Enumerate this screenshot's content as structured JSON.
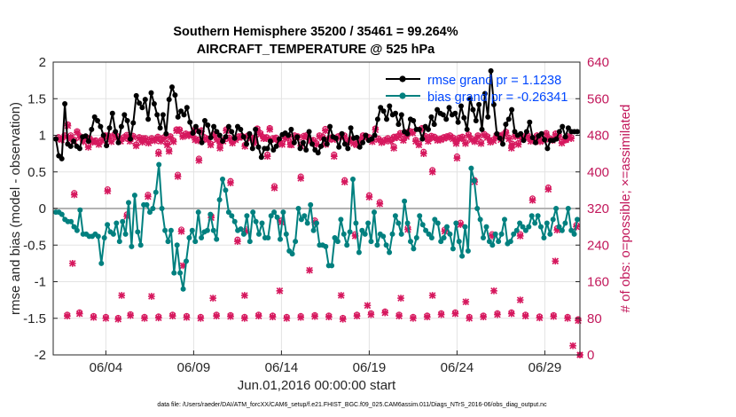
{
  "chart_data": {
    "type": "line",
    "title": "Southern Hemisphere 35200 / 35461 = 99.264%",
    "subtitle": "AIRCRAFT_TEMPERATURE @ 525 hPa",
    "xlabel": "Jun.01,2016 00:00:00 start",
    "ylabel": "rmse and bias (model - observation)",
    "ylabel_right": "# of obs: o=possible; ×=assimilated",
    "x_range_days": [
      1.0,
      31.0
    ],
    "ylim": [
      -2,
      2
    ],
    "ylim_right": [
      0,
      640
    ],
    "x_ticks": [
      "06/04",
      "06/09",
      "06/14",
      "06/19",
      "06/24",
      "06/29"
    ],
    "y_ticks": [
      "-2",
      "-1.5",
      "-1",
      "-0.5",
      "0",
      "0.5",
      "1",
      "1.5",
      "2"
    ],
    "y_ticks_right": [
      "0",
      "80",
      "160",
      "240",
      "320",
      "400",
      "480",
      "560",
      "640"
    ],
    "grid": true,
    "legend_position": "top-right",
    "footer": "data file: /Users/raeder/DAI/ATM_forcXX/CAM6_setup/f.e21.FHIST_BGC.f09_025.CAM6assim.011/Diags_NTrS_2016-06/obs_diag_output.nc",
    "colors": {
      "rmse": "#000000",
      "bias": "#00807f",
      "obs": "#d6185e",
      "zero_line": "#b3b3b3"
    },
    "series": [
      {
        "name": "rmse grand pr = 1.1238",
        "values": [
          0.95,
          0.72,
          0.68,
          1.43,
          0.88,
          0.85,
          0.92,
          0.85,
          0.82,
          0.98,
          0.99,
          0.92,
          1.08,
          1.25,
          1.2,
          1.12,
          1.0,
          0.86,
          1.1,
          1.3,
          1.05,
          0.9,
          1.12,
          1.28,
          1.2,
          0.95,
          1.17,
          1.54,
          1.44,
          1.38,
          1.49,
          1.22,
          1.58,
          1.43,
          1.28,
          1.1,
          1.28,
          1.02,
          1.49,
          1.66,
          1.55,
          1.25,
          1.33,
          1.28,
          1.38,
          1.18,
          1.03,
          1.12,
          1.05,
          0.9,
          1.2,
          1.14,
          0.97,
          1.12,
          1.05,
          1.0,
          0.92,
          0.98,
          1.12,
          1.05,
          0.96,
          1.12,
          1.08,
          0.98,
          0.88,
          1.02,
          0.82,
          1.08,
          0.84,
          0.7,
          0.82,
          0.82,
          0.92,
          0.8,
          0.85,
          0.95,
          1.01,
          1.03,
          1.0,
          1.08,
          0.9,
          0.98,
          0.82,
          0.9,
          0.8,
          1.05,
          0.88,
          0.8,
          0.76,
          0.85,
          0.95,
          0.88,
          1.12,
          0.98,
          0.96,
          0.84,
          1.02,
          0.88,
          0.82,
          1.1,
          0.96,
          0.97,
          0.84,
          0.9,
          1.0,
          0.93,
          0.95,
          1.0,
          1.22,
          1.38,
          1.33,
          1.22,
          1.4,
          1.28,
          1.3,
          1.15,
          1.28,
          1.05,
          1.02,
          1.22,
          1.2,
          1.08,
          1.08,
          0.95,
          1.12,
          1.08,
          1.25,
          1.15,
          1.35,
          1.3,
          1.28,
          1.22,
          1.38,
          1.28,
          1.3,
          1.18,
          1.4,
          1.24,
          1.08,
          1.5,
          1.35,
          1.2,
          1.42,
          1.08,
          1.57,
          1.25,
          1.88,
          1.42,
          1.02,
          0.96,
          0.88,
          1.15,
          1.22,
          1.35,
          1.05,
          1.0,
          1.02,
          0.93,
          1.05,
          1.18,
          0.97,
          0.9,
          0.99,
          1.02,
          0.94,
          0.82,
          0.93,
          0.93,
          0.95,
          1.05,
          1.12,
          0.98,
          1.1,
          1.05,
          1.05,
          1.05
        ]
      },
      {
        "name": "bias grand pr = -0.26341",
        "values": [
          -0.05,
          -0.05,
          -0.08,
          -0.15,
          -0.18,
          -0.18,
          -0.25,
          -0.3,
          -0.02,
          -0.35,
          -0.35,
          -0.38,
          -0.38,
          -0.35,
          -0.38,
          -0.75,
          -0.4,
          -0.22,
          -0.32,
          -0.35,
          -0.2,
          -0.45,
          -0.18,
          -0.35,
          0.08,
          -0.52,
          0.18,
          -0.32,
          -0.5,
          0.05,
          0.05,
          -0.05,
          0.0,
          0.22,
          0.6,
          0.0,
          -0.3,
          -0.45,
          -0.3,
          -0.88,
          -0.5,
          -0.88,
          -1.1,
          -0.72,
          -0.4,
          -0.3,
          -0.45,
          -0.05,
          -0.4,
          -0.32,
          -0.3,
          -0.08,
          -0.3,
          -0.42,
          0.12,
          0.4,
          0.25,
          -0.05,
          -0.1,
          -0.18,
          -0.3,
          -0.28,
          -0.35,
          -0.1,
          -0.45,
          -0.05,
          -0.18,
          -0.35,
          -0.2,
          -0.4,
          -0.4,
          -0.1,
          -0.05,
          -0.12,
          -0.42,
          -0.05,
          -0.35,
          -0.58,
          -0.62,
          -0.45,
          0.0,
          -0.15,
          -0.1,
          -0.2,
          0.05,
          -0.3,
          -0.2,
          -0.5,
          -0.5,
          -0.52,
          -0.78,
          -0.78,
          -0.4,
          -0.45,
          -0.15,
          -0.35,
          -0.5,
          -0.32,
          0.4,
          -0.2,
          -0.6,
          -0.3,
          -0.35,
          -0.2,
          -0.45,
          -0.05,
          -0.5,
          -0.35,
          -0.38,
          -0.5,
          -0.6,
          -0.35,
          -0.1,
          -0.2,
          -0.35,
          0.1,
          -0.2,
          -0.45,
          -0.55,
          -0.4,
          -0.1,
          -0.22,
          -0.3,
          -0.35,
          -0.4,
          -0.15,
          -0.2,
          -0.45,
          -0.4,
          -0.25,
          -0.35,
          -0.55,
          -0.2,
          -0.45,
          -0.65,
          -0.25,
          -0.58,
          0.55,
          0.38,
          0.0,
          -0.15,
          -0.4,
          -0.25,
          -0.45,
          -0.5,
          -0.35,
          -0.45,
          -0.35,
          -0.15,
          -0.48,
          -0.45,
          -0.35,
          -0.3,
          -0.2,
          -0.25,
          -0.3,
          -0.25,
          -0.1,
          -0.2,
          -0.1,
          -0.25,
          -0.4,
          -0.2,
          -0.35,
          -0.15,
          0.0,
          -0.25,
          -0.3,
          -0.2,
          0.0,
          -0.3,
          -0.35,
          -0.15
        ]
      }
    ],
    "obs_counts": {
      "possible": [
        476,
        473,
        480,
        504,
        475,
        471,
        489,
        478,
        469,
        476,
        474,
        468,
        469,
        463,
        471,
        480,
        480,
        469,
        482,
        478,
        470,
        476,
        481,
        470,
        479,
        460,
        476,
        468,
        474,
        466,
        474,
        471,
        477,
        470,
        476,
        462,
        478,
        469,
        493,
        493,
        480,
        484,
        482,
        484,
        473,
        471,
        491,
        476,
        473,
        462,
        483,
        473,
        465,
        470,
        493,
        475,
        466,
        473,
        478,
        479,
        459,
        480,
        476,
        466,
        495,
        485,
        476,
        476,
        496,
        474,
        475,
        467,
        463,
        476,
        479,
        462,
        480,
        478,
        460,
        479,
        481,
        470,
        470,
        463,
        480,
        477,
        463,
        473,
        476,
        474,
        478,
        481,
        480,
        468,
        472,
        465,
        462,
        470,
        480,
        479,
        476,
        469,
        495,
        473,
        467,
        470,
        474,
        470,
        477,
        478,
        485,
        472,
        480,
        490,
        488,
        470,
        462,
        496,
        479,
        470,
        479,
        477,
        472,
        473,
        476,
        478,
        480,
        475,
        465,
        475,
        477,
        465,
        482,
        473,
        469,
        480,
        465,
        483,
        478,
        468,
        471,
        481,
        480,
        482,
        488,
        475,
        462,
        480,
        463,
        476,
        478,
        480,
        470,
        473,
        480,
        469,
        472,
        485,
        474,
        472,
        484,
        480,
        466,
        473,
        478,
        476
      ],
      "assimilated_samples": [
        [
          2.0,
          476
        ],
        [
          2.2,
          350
        ],
        [
          3.0,
          454
        ],
        [
          4.1,
          358
        ],
        [
          5.2,
          303
        ],
        [
          6.1,
          470
        ],
        [
          6.4,
          346
        ],
        [
          7.0,
          440
        ],
        [
          7.6,
          445
        ],
        [
          8.1,
          390
        ],
        [
          8.3,
          270
        ],
        [
          9.1,
          490
        ],
        [
          9.3,
          425
        ],
        [
          10.0,
          300
        ],
        [
          10.5,
          452
        ],
        [
          11.1,
          376
        ],
        [
          11.5,
          248
        ],
        [
          12.0,
          270
        ],
        [
          12.4,
          470
        ],
        [
          13.2,
          434
        ],
        [
          13.6,
          365
        ],
        [
          14.0,
          290
        ],
        [
          14.5,
          460
        ],
        [
          15.1,
          386
        ],
        [
          15.9,
          290
        ],
        [
          16.5,
          490
        ],
        [
          17.0,
          434
        ],
        [
          17.6,
          378
        ],
        [
          18.2,
          260
        ],
        [
          19.0,
          345
        ],
        [
          19.6,
          330
        ],
        [
          20.4,
          452
        ],
        [
          21.2,
          274
        ],
        [
          22.1,
          440
        ],
        [
          22.6,
          400
        ],
        [
          23.3,
          270
        ],
        [
          24.0,
          430
        ],
        [
          24.2,
          285
        ],
        [
          25.0,
          378
        ],
        [
          26.0,
          260
        ],
        [
          26.5,
          470
        ],
        [
          27.1,
          452
        ],
        [
          27.6,
          260
        ],
        [
          28.3,
          338
        ],
        [
          29.2,
          362
        ],
        [
          29.7,
          273
        ],
        [
          30.2,
          470
        ],
        [
          30.8,
          280
        ]
      ],
      "low_band": [
        [
          1.8,
          85
        ],
        [
          2.5,
          90
        ],
        [
          3.3,
          82
        ],
        [
          4.0,
          80
        ],
        [
          4.7,
          78
        ],
        [
          5.4,
          86
        ],
        [
          6.2,
          80
        ],
        [
          7.0,
          81
        ],
        [
          7.8,
          85
        ],
        [
          8.6,
          82
        ],
        [
          9.4,
          80
        ],
        [
          10.3,
          85
        ],
        [
          11.1,
          84
        ],
        [
          11.9,
          80
        ],
        [
          12.7,
          85
        ],
        [
          13.5,
          83
        ],
        [
          14.3,
          80
        ],
        [
          15.1,
          82
        ],
        [
          15.9,
          84
        ],
        [
          16.7,
          83
        ],
        [
          17.5,
          78
        ],
        [
          18.3,
          85
        ],
        [
          19.1,
          88
        ],
        [
          19.9,
          92
        ],
        [
          20.7,
          85
        ],
        [
          21.5,
          80
        ],
        [
          22.3,
          83
        ],
        [
          23.1,
          88
        ],
        [
          23.9,
          90
        ],
        [
          24.7,
          80
        ],
        [
          25.5,
          83
        ],
        [
          26.3,
          88
        ],
        [
          27.1,
          90
        ],
        [
          27.9,
          85
        ],
        [
          28.7,
          81
        ],
        [
          29.5,
          84
        ],
        [
          30.3,
          80
        ],
        [
          30.9,
          75
        ]
      ],
      "mid_low_band": [
        [
          2.1,
          200
        ],
        [
          4.9,
          130
        ],
        [
          6.6,
          128
        ],
        [
          8.4,
          195
        ],
        [
          10.1,
          124
        ],
        [
          11.9,
          130
        ],
        [
          13.9,
          140
        ],
        [
          15.6,
          185
        ],
        [
          17.4,
          130
        ],
        [
          18.9,
          108
        ],
        [
          20.8,
          124
        ],
        [
          22.6,
          130
        ],
        [
          24.5,
          116
        ],
        [
          26.1,
          140
        ],
        [
          27.6,
          120
        ],
        [
          29.6,
          205
        ],
        [
          30.6,
          20
        ]
      ]
    }
  }
}
